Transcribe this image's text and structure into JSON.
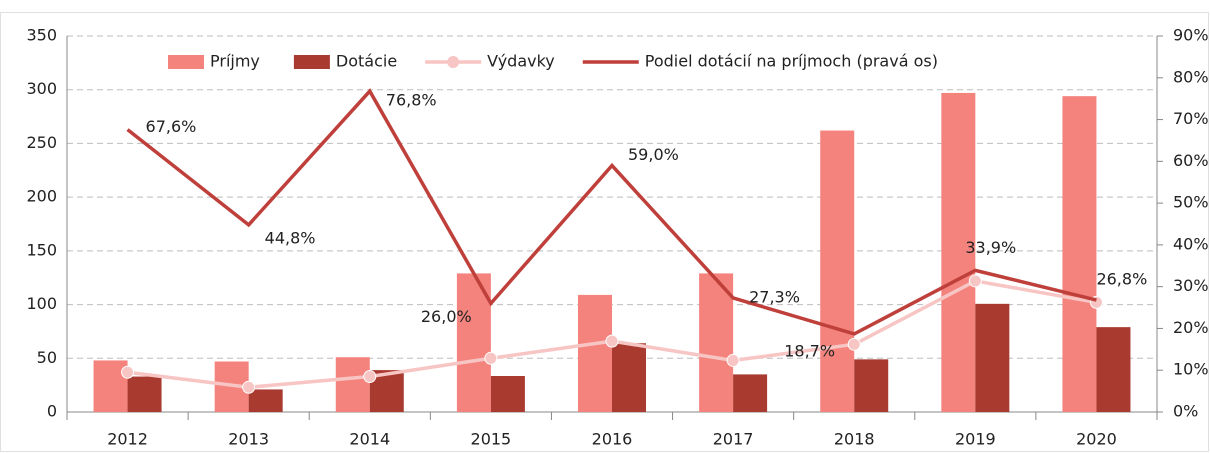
{
  "chart_data": {
    "type": "bar-line",
    "categories": [
      "2012",
      "2013",
      "2014",
      "2015",
      "2016",
      "2017",
      "2018",
      "2019",
      "2020"
    ],
    "series": [
      {
        "name": "Príjmy",
        "type": "bar",
        "color": "#f4837d",
        "values": [
          48,
          47,
          51,
          129,
          109,
          129,
          262,
          297,
          294
        ]
      },
      {
        "name": "Dotácie",
        "type": "bar",
        "color": "#a93a30",
        "values": [
          33,
          21,
          39,
          33.5,
          64,
          35,
          49,
          100.7,
          79
        ]
      },
      {
        "name": "Výdavky",
        "type": "line",
        "color": "#f7c5c3",
        "markers": true,
        "values": [
          37,
          23,
          33,
          50,
          66,
          48,
          63,
          122,
          102
        ]
      },
      {
        "name": "Podiel dotácií na príjmoch (pravá os)",
        "type": "line",
        "axis": "y2",
        "color": "#bf3f3a",
        "markers": false,
        "values": [
          67.6,
          44.8,
          76.8,
          26.0,
          59.0,
          27.3,
          18.7,
          33.9,
          26.8
        ],
        "value_labels": [
          "67,6%",
          "44,8%",
          "76,8%",
          "26,0%",
          "59,0%",
          "27,3%",
          "18,7%",
          "33,9%",
          "26,8%"
        ]
      }
    ],
    "ylim": [
      0,
      350
    ],
    "yticks": [
      0,
      50,
      100,
      150,
      200,
      250,
      300,
      350
    ],
    "y2lim": [
      0,
      90
    ],
    "y2ticks": [
      {
        "value": 0,
        "label": "0%"
      },
      {
        "value": 10,
        "label": "10%"
      },
      {
        "value": 20,
        "label": "20%"
      },
      {
        "value": 30,
        "label": "30%"
      },
      {
        "value": 40,
        "label": "40%"
      },
      {
        "value": 50,
        "label": "50%"
      },
      {
        "value": 60,
        "label": "60%"
      },
      {
        "value": 70,
        "label": "70%"
      },
      {
        "value": 80,
        "label": "80%"
      },
      {
        "value": 90,
        "label": "90%"
      }
    ],
    "grid": true,
    "legend": "top"
  }
}
